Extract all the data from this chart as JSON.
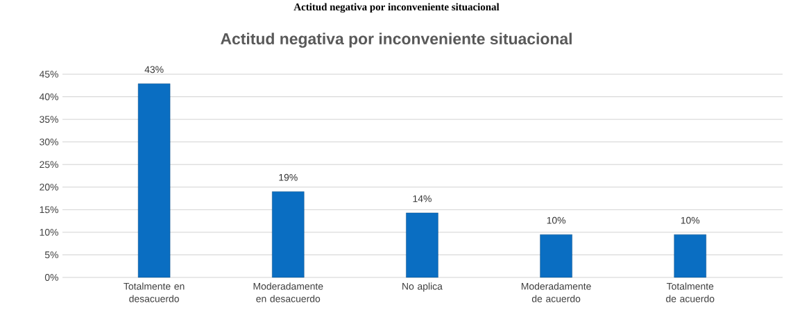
{
  "chart_data": {
    "type": "bar",
    "title": "Actitud negativa por inconveniente situacional",
    "annotations": [
      "Actitud negativa por inconveniente situacional"
    ],
    "categories": [
      "Totalmente en desacuerdo",
      "Moderadamente en desacuerdo",
      "No aplica",
      "Moderadamente de acuerdo",
      "Totalmente de acuerdo"
    ],
    "values": [
      42.9,
      19.0,
      14.3,
      9.5,
      9.5
    ],
    "value_labels": [
      "43%",
      "19%",
      "14%",
      "10%",
      "10%"
    ],
    "color": "#0a6ec2",
    "ylim": [
      0,
      45
    ],
    "yticks": [
      {
        "value": 0,
        "label": "0%"
      },
      {
        "value": 5,
        "label": "5%"
      },
      {
        "value": 10,
        "label": "10%"
      },
      {
        "value": 15,
        "label": "15%"
      },
      {
        "value": 20,
        "label": "20%"
      },
      {
        "value": 25,
        "label": "25%"
      },
      {
        "value": 30,
        "label": "30%"
      },
      {
        "value": 35,
        "label": "35%"
      },
      {
        "value": 40,
        "label": "40%"
      },
      {
        "value": 45,
        "label": "45%"
      }
    ],
    "grid": "y"
  }
}
